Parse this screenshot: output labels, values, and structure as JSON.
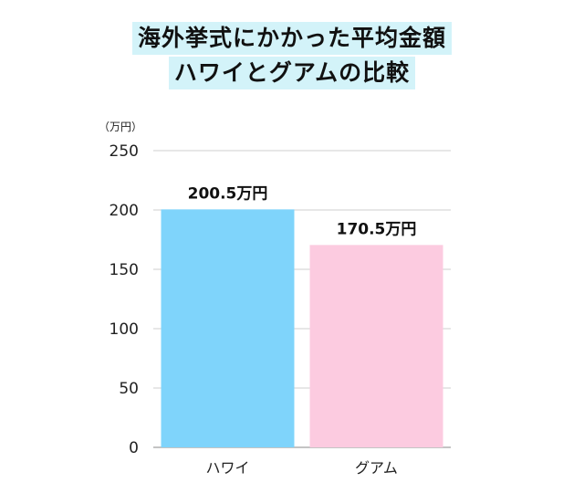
{
  "title_lines": [
    "海外挙式にかかった平均金額",
    "ハワイとグアムの比較"
  ],
  "chart_data": {
    "type": "bar",
    "categories": [
      "ハワイ",
      "グアム"
    ],
    "values": [
      200.5,
      170.5
    ],
    "data_labels": [
      "200.5万円",
      "170.5万円"
    ],
    "colors": [
      "#7fd4fb",
      "#fccbe0"
    ],
    "yunit": "（万円）",
    "ylim": [
      0,
      250
    ],
    "yticks": [
      0,
      50,
      100,
      150,
      200,
      250
    ],
    "grid": true,
    "legend": "none"
  }
}
